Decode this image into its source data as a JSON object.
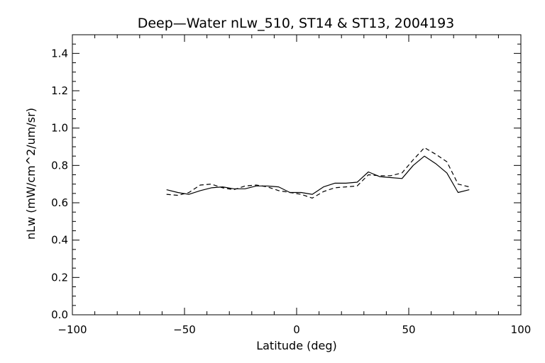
{
  "chart_data": {
    "type": "line",
    "title": "Deep—Water nLw_510, ST14 & ST13, 2004193",
    "xlabel": "Latitude (deg)",
    "ylabel": "nLw (mW/cm^2/um/sr)",
    "xlim": [
      -100,
      100
    ],
    "ylim": [
      0.0,
      1.5
    ],
    "x_ticks": [
      "−100",
      "−50",
      "0",
      "50",
      "100"
    ],
    "y_ticks": [
      "0.0",
      "0.2",
      "0.4",
      "0.6",
      "0.8",
      "1.0",
      "1.2",
      "1.4"
    ],
    "grid": false,
    "series": [
      {
        "style": "solid",
        "color": "#000000",
        "x": [
          -58,
          -53,
          -48,
          -43,
          -38,
          -33,
          -28,
          -23,
          -18,
          -13,
          -8,
          -3,
          2,
          7,
          12,
          17,
          22,
          27,
          32,
          37,
          42,
          47,
          52,
          57,
          62,
          67,
          72,
          77
        ],
        "y": [
          0.67,
          0.655,
          0.645,
          0.665,
          0.68,
          0.685,
          0.675,
          0.675,
          0.69,
          0.69,
          0.685,
          0.655,
          0.655,
          0.645,
          0.685,
          0.705,
          0.705,
          0.71,
          0.765,
          0.74,
          0.735,
          0.73,
          0.8,
          0.85,
          0.81,
          0.76,
          0.655,
          0.67
        ]
      },
      {
        "style": "dashed",
        "color": "#000000",
        "x": [
          -58,
          -53,
          -48,
          -43,
          -38,
          -33,
          -28,
          -23,
          -18,
          -13,
          -8,
          -3,
          2,
          7,
          12,
          17,
          22,
          27,
          32,
          37,
          42,
          47,
          52,
          57,
          62,
          67,
          72,
          77
        ],
        "y": [
          0.645,
          0.64,
          0.655,
          0.695,
          0.7,
          0.68,
          0.67,
          0.69,
          0.695,
          0.685,
          0.665,
          0.655,
          0.645,
          0.625,
          0.66,
          0.68,
          0.685,
          0.69,
          0.75,
          0.745,
          0.745,
          0.76,
          0.83,
          0.895,
          0.86,
          0.82,
          0.7,
          0.685
        ]
      }
    ]
  }
}
